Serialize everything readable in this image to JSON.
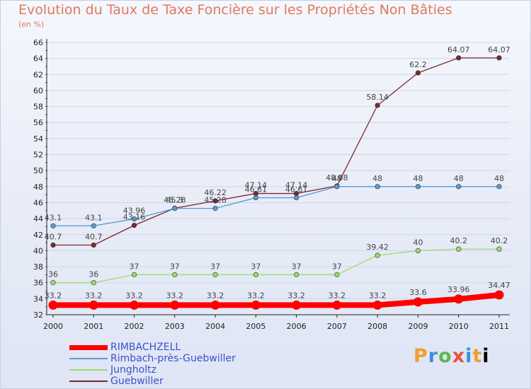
{
  "title": "Evolution du Taux de Taxe Foncière sur les Propriétés Non Bâties",
  "unit": "(en %)",
  "logo": "Proxiti",
  "chart_data": {
    "type": "line",
    "title": "Evolution du Taux de Taxe Foncière sur les Propriétés Non Bâties",
    "ylabel": "(en %)",
    "xlabel": "",
    "x": [
      "2000",
      "2001",
      "2002",
      "2003",
      "2004",
      "2005",
      "2006",
      "2007",
      "2008",
      "2009",
      "2010",
      "2011"
    ],
    "ylim": [
      32,
      66
    ],
    "yticks": [
      "32",
      "34",
      "36",
      "38",
      "40",
      "42",
      "44",
      "46",
      "48",
      "50",
      "52",
      "54",
      "56",
      "58",
      "60",
      "62",
      "64",
      "66"
    ],
    "grid": "horizontal",
    "legend_position": "bottom-left",
    "series": [
      {
        "name": "RIMBACHZELL",
        "color": "#ff0000",
        "values": [
          33.2,
          33.2,
          33.2,
          33.2,
          33.2,
          33.2,
          33.2,
          33.2,
          33.2,
          33.6,
          33.96,
          34.47
        ],
        "labels": [
          "33.2",
          "33.2",
          "33.2",
          "33.2",
          "33.2",
          "33.2",
          "33.2",
          "33.2",
          "33.2",
          "33.6",
          "33.96",
          "34.47"
        ]
      },
      {
        "name": "Rimbach-près-Guebwiller",
        "color": "#5b9bd5",
        "values": [
          43.1,
          43.1,
          43.96,
          45.28,
          45.28,
          46.61,
          46.61,
          48,
          48,
          48,
          48,
          48
        ],
        "labels": [
          "43.1",
          "43.1",
          "43.96",
          "45.28",
          "45.28",
          "46.61",
          "46.61",
          "48",
          "48",
          "48",
          "48",
          "48"
        ]
      },
      {
        "name": "Jungholtz",
        "color": "#99dd66",
        "values": [
          36,
          36,
          37,
          37,
          37,
          37,
          37,
          37,
          39.42,
          40,
          40.2,
          40.2
        ],
        "labels": [
          "36",
          "36",
          "37",
          "37",
          "37",
          "37",
          "37",
          "37",
          "39.42",
          "40",
          "40.2",
          "40.2"
        ]
      },
      {
        "name": "Guebwiller",
        "color": "#7a2a2a",
        "values": [
          40.7,
          40.7,
          43.16,
          45.3,
          46.22,
          47.14,
          47.14,
          48.08,
          58.14,
          62.2,
          64.07,
          64.07
        ],
        "labels": [
          "40.7",
          "40.7",
          "43.16",
          "45.3",
          "46.22",
          "47.14",
          "47.14",
          "48.08",
          "58.14",
          "62.2",
          "64.07",
          "64.07"
        ]
      }
    ]
  }
}
